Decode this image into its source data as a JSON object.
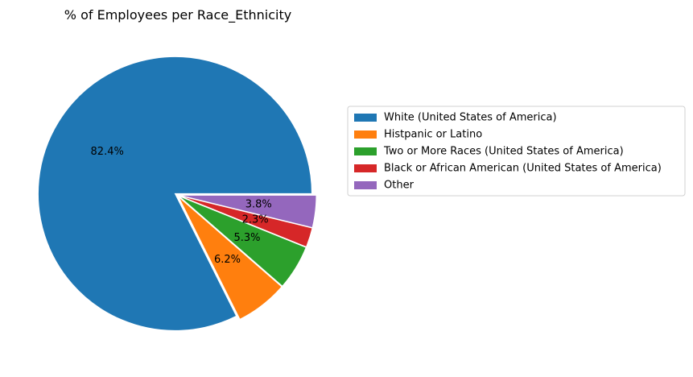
{
  "chart_data": {
    "type": "pie",
    "title": "% of Employees per Race_Ethnicity",
    "slices": [
      {
        "label": "White (United States of America)",
        "value": 82.4,
        "pct_label": "82.4%",
        "color": "#1f77b4"
      },
      {
        "label": "Histpanic or Latino",
        "value": 6.2,
        "pct_label": "6.2%",
        "color": "#ff7f0e"
      },
      {
        "label": "Two or More Races (United States of America)",
        "value": 5.3,
        "pct_label": "5.3%",
        "color": "#2ca02c"
      },
      {
        "label": "Black or African American (United States of America)",
        "value": 2.3,
        "pct_label": "2.3%",
        "color": "#d62728"
      },
      {
        "label": "Other",
        "value": 3.8,
        "pct_label": "3.8%",
        "color": "#9467bd"
      }
    ],
    "start_angle_deg": 0,
    "direction": "counterclockwise",
    "legend_position": "right"
  }
}
